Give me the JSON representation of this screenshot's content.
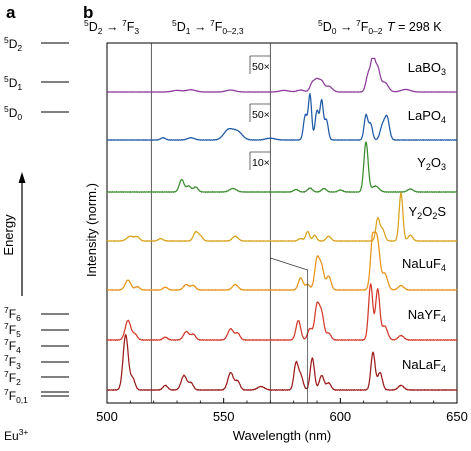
{
  "panels": {
    "a": "a",
    "b": "b"
  },
  "energy_diagram": {
    "levels": [
      {
        "main": "5",
        "sym": "D",
        "sub": "2",
        "x": 0.4
      },
      {
        "main": "5",
        "sym": "D",
        "sub": "1",
        "x": 0.2
      },
      {
        "main": "5",
        "sym": "D",
        "sub": "0",
        "x": 0.1
      },
      {
        "main": "7",
        "sym": "F",
        "sub": "6",
        "x": 0.22
      },
      {
        "main": "7",
        "sym": "F",
        "sub": "5",
        "x": 0.18
      },
      {
        "main": "7",
        "sym": "F",
        "sub": "4",
        "x": 0.14
      },
      {
        "main": "7",
        "sym": "F",
        "sub": "3",
        "x": 0.1
      },
      {
        "main": "7",
        "sym": "F",
        "sub": "2",
        "x": 0.06
      },
      {
        "main": "7",
        "sym": "F",
        "sub": "0,1",
        "x": 0.0
      }
    ],
    "axis_label": "Energy",
    "ion": "Eu",
    "ion_charge": "3+"
  },
  "chart_data": {
    "type": "line",
    "xlabel": "Wavelength (nm)",
    "ylabel": "Intensity (norm.)",
    "xlim": [
      500,
      650
    ],
    "xticks": [
      500,
      550,
      600,
      650
    ],
    "temperature": {
      "symbol": "T",
      "value": " = 298 K"
    },
    "transitions": [
      {
        "from_main": "5",
        "from_sym": "D",
        "from_sub": "2",
        "arrow": " → ",
        "to_main": "7",
        "to_sym": "F",
        "to_sub": "3"
      },
      {
        "from_main": "5",
        "from_sym": "D",
        "from_sub": "1",
        "arrow": " → ",
        "to_main": "7",
        "to_sym": "F",
        "to_sub": "0–2,3"
      },
      {
        "from_main": "5",
        "from_sym": "D",
        "from_sub": "0",
        "arrow": " → ",
        "to_main": "7",
        "to_sym": "F",
        "to_sub": "0–2"
      }
    ],
    "vlines": [
      519,
      570
    ],
    "series": [
      {
        "name": "LaBO3",
        "label_base": "LaBO",
        "label_sub": "3",
        "color": "#8e3b9c",
        "scale": "50×",
        "peaks": [
          [
            530,
            0.05,
            2
          ],
          [
            536,
            0.07,
            2
          ],
          [
            553,
            0.06,
            2
          ],
          [
            576,
            0.05,
            2
          ],
          [
            583,
            0.06,
            1.5
          ],
          [
            588,
            0.28,
            1
          ],
          [
            590,
            0.35,
            1
          ],
          [
            592,
            0.3,
            1
          ],
          [
            595,
            0.18,
            1.5
          ],
          [
            612,
            0.55,
            1
          ],
          [
            614,
            1.0,
            0.9
          ],
          [
            616,
            0.7,
            1
          ],
          [
            619,
            0.3,
            1.5
          ],
          [
            628,
            0.08,
            2
          ]
        ]
      },
      {
        "name": "LaPO4",
        "label_base": "LaPO",
        "label_sub": "4",
        "color": "#1f5aa6",
        "scale": "50×",
        "peaks": [
          [
            524,
            0.05,
            1
          ],
          [
            536,
            0.05,
            1.5
          ],
          [
            552,
            0.22,
            2
          ],
          [
            556,
            0.18,
            2
          ],
          [
            570,
            0.04,
            2
          ],
          [
            585,
            0.55,
            0.8
          ],
          [
            587,
            1.0,
            0.7
          ],
          [
            590,
            0.65,
            0.8
          ],
          [
            592,
            0.85,
            0.7
          ],
          [
            594,
            0.45,
            0.8
          ],
          [
            611,
            0.55,
            0.8
          ],
          [
            613,
            0.35,
            0.8
          ],
          [
            618,
            0.3,
            1
          ],
          [
            620,
            0.5,
            1
          ]
        ]
      },
      {
        "name": "Y2O3",
        "label_base": "Y",
        "label_sub": "2",
        "label_rest": "O",
        "label_sub2": "3",
        "color": "#3a8c2e",
        "scale": "10×",
        "peaks": [
          [
            532,
            0.25,
            1
          ],
          [
            535,
            0.12,
            1
          ],
          [
            538,
            0.1,
            1
          ],
          [
            554,
            0.07,
            1.5
          ],
          [
            581,
            0.05,
            1
          ],
          [
            587,
            0.08,
            1
          ],
          [
            593,
            0.07,
            1
          ],
          [
            600,
            0.04,
            1
          ],
          [
            611,
            1.0,
            0.9
          ],
          [
            615,
            0.12,
            1.5
          ],
          [
            630,
            0.06,
            1.2
          ]
        ]
      },
      {
        "name": "Y2O2S",
        "label_base": "Y",
        "label_sub": "2",
        "label_rest": "O",
        "label_sub2": "2",
        "label_tail": "S",
        "color": "#d9a21b",
        "peaks": [
          [
            510,
            0.1,
            1.5
          ],
          [
            513,
            0.08,
            1
          ],
          [
            523,
            0.05,
            1
          ],
          [
            538,
            0.18,
            1
          ],
          [
            540,
            0.1,
            1
          ],
          [
            555,
            0.1,
            1.2
          ],
          [
            583,
            0.05,
            1
          ],
          [
            586,
            0.2,
            0.8
          ],
          [
            589,
            0.12,
            0.8
          ],
          [
            595,
            0.1,
            1
          ],
          [
            616,
            0.45,
            0.8
          ],
          [
            618,
            0.25,
            1
          ],
          [
            626,
            1.0,
            0.8
          ],
          [
            630,
            0.12,
            1
          ]
        ]
      },
      {
        "name": "NaLuF4",
        "label_base": "NaLuF",
        "label_sub": "4",
        "color": "#e8941a",
        "peaks": [
          [
            509,
            0.18,
            1.2
          ],
          [
            513,
            0.06,
            1
          ],
          [
            525,
            0.05,
            1
          ],
          [
            534,
            0.1,
            1.2
          ],
          [
            537,
            0.08,
            1
          ],
          [
            555,
            0.1,
            1.2
          ],
          [
            583,
            0.22,
            1
          ],
          [
            586,
            0.1,
            1
          ],
          [
            590,
            0.55,
            1
          ],
          [
            592,
            0.4,
            1
          ],
          [
            595,
            0.25,
            1
          ],
          [
            614,
            1.0,
            1
          ],
          [
            616,
            0.8,
            1
          ],
          [
            619,
            0.3,
            1.2
          ],
          [
            626,
            0.08,
            1.2
          ]
        ]
      },
      {
        "name": "NaYF4",
        "label_base": "NaYF",
        "label_sub": "4",
        "color": "#d43a2a",
        "peaks": [
          [
            509,
            0.35,
            1.2
          ],
          [
            512,
            0.1,
            1
          ],
          [
            525,
            0.05,
            1
          ],
          [
            534,
            0.15,
            1.2
          ],
          [
            537,
            0.1,
            1
          ],
          [
            553,
            0.2,
            1.2
          ],
          [
            556,
            0.12,
            1
          ],
          [
            582,
            0.35,
            1
          ],
          [
            587,
            0.2,
            1
          ],
          [
            590,
            0.6,
            1
          ],
          [
            592,
            0.45,
            1
          ],
          [
            595,
            0.12,
            1
          ],
          [
            613,
            1.0,
            0.9
          ],
          [
            616,
            0.9,
            0.9
          ],
          [
            619,
            0.25,
            1.2
          ],
          [
            626,
            0.08,
            1.2
          ]
        ]
      },
      {
        "name": "NaLaF4",
        "label_base": "NaLaF",
        "label_sub": "4",
        "color": "#9c1c1c",
        "peaks": [
          [
            508,
            0.95,
            1.1
          ],
          [
            511,
            0.2,
            1
          ],
          [
            525,
            0.08,
            1
          ],
          [
            533,
            0.25,
            1.2
          ],
          [
            536,
            0.12,
            1
          ],
          [
            553,
            0.3,
            1.2
          ],
          [
            556,
            0.15,
            1
          ],
          [
            566,
            0.06,
            1.5
          ],
          [
            581,
            0.45,
            0.9
          ],
          [
            583,
            0.25,
            1
          ],
          [
            588,
            0.55,
            0.9
          ],
          [
            592,
            0.25,
            1
          ],
          [
            595,
            0.12,
            1
          ],
          [
            614,
            0.65,
            0.9
          ],
          [
            617,
            0.3,
            1
          ],
          [
            626,
            0.08,
            1.2
          ]
        ]
      }
    ]
  }
}
